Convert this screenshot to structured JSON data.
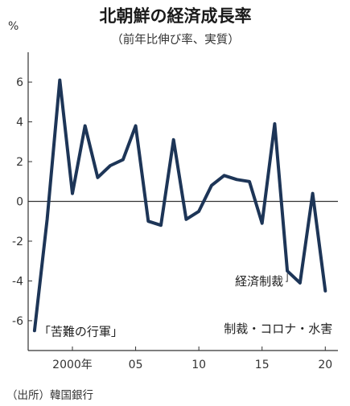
{
  "chart_data": {
    "type": "line",
    "title": "北朝鮮の経済成長率",
    "subtitle": "（前年比伸び率、実質）",
    "unit": "%",
    "x": [
      1997,
      1998,
      1999,
      2000,
      2001,
      2002,
      2003,
      2004,
      2005,
      2006,
      2007,
      2008,
      2009,
      2010,
      2011,
      2012,
      2013,
      2014,
      2015,
      2016,
      2017,
      2018,
      2019,
      2020
    ],
    "values": [
      -6.5,
      -0.9,
      6.1,
      0.4,
      3.8,
      1.2,
      1.8,
      2.1,
      3.8,
      -1.0,
      -1.2,
      3.1,
      -0.9,
      -0.5,
      0.8,
      1.3,
      1.1,
      1.0,
      -1.1,
      3.9,
      -3.5,
      -4.1,
      0.4,
      -4.5
    ],
    "ylim": [
      -7.5,
      7.5
    ],
    "xlim": [
      1996.5,
      2021
    ],
    "y_ticks": [
      6,
      4,
      2,
      0,
      -2,
      -4,
      -6
    ],
    "y_tick_labels": [
      "6",
      "4",
      "2",
      "0",
      "-2",
      "-4",
      "-6"
    ],
    "x_ticks": [
      2000,
      2005,
      2010,
      2015,
      2020
    ],
    "x_tick_labels": [
      "2000年",
      "05",
      "10",
      "15",
      "20"
    ],
    "line_color": "#1d3557",
    "annotations": [
      {
        "text": "「苦難の行軍」",
        "x": 1997,
        "y": -6.5
      },
      {
        "text": "経済制裁",
        "x": 2017,
        "y": -3.5
      },
      {
        "text": "制裁・コロナ・水害",
        "x": 2020,
        "y": -4.5
      }
    ],
    "grid": false
  },
  "source": "（出所）韓国銀行"
}
